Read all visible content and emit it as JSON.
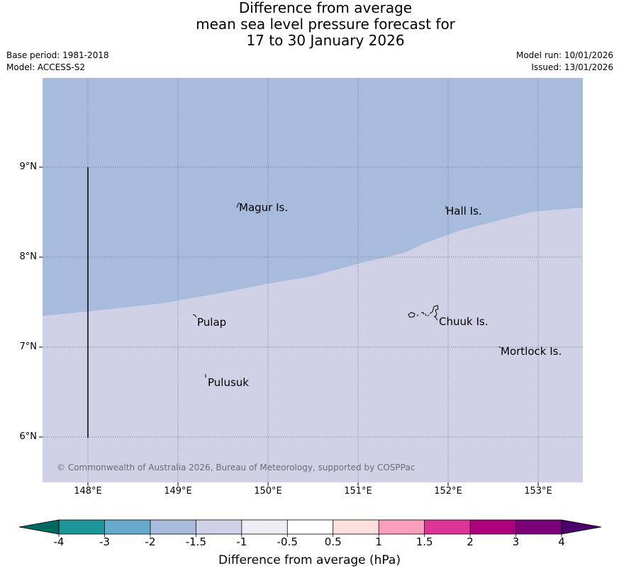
{
  "title": {
    "line1": "Difference from average",
    "line2": "mean sea level pressure forecast for",
    "line3": "17 to 30 January 2026"
  },
  "meta": {
    "base_period": "Base period: 1981-2018",
    "model": "Model: ACCESS-S2",
    "model_run": "Model run: 10/01/2026",
    "issued": "Issued: 13/01/2026"
  },
  "map": {
    "lat_labels": [
      "9°N",
      "8°N",
      "7°N",
      "6°N"
    ],
    "lon_labels": [
      "148°E",
      "149°E",
      "150°E",
      "151°E",
      "152°E",
      "153°E"
    ],
    "places": [
      "Magur Is.",
      "Hall Is.",
      "Pulap",
      "Chuuk Is.",
      "Mortlock Is.",
      "Pulusuk"
    ],
    "copyright": "© Commonwealth of Australia 2026, Bureau of Meteorology, supported by COSPPac",
    "colors": {
      "band_-2_to_-1.5": "#a7bbdc",
      "band_-1.5_to_-1": "#d0d1e6",
      "grid": "#7a7a8a"
    }
  },
  "colorbar": {
    "title": "Difference from average (hPa)",
    "tick_labels": [
      "-4",
      "-3",
      "-2",
      "-1.5",
      "-1",
      "-0.5",
      "0.5",
      "1",
      "1.5",
      "2",
      "3",
      "4"
    ],
    "low_extend_color": "#00685e",
    "high_extend_color": "#4a006a",
    "colors": [
      "#1e9598",
      "#67a9cf",
      "#a7bbdc",
      "#d0d1e6",
      "#efecf3",
      "#ffffff",
      "#fde0dd",
      "#f99fbb",
      "#dd3497",
      "#ae017e",
      "#7a0177"
    ]
  }
}
